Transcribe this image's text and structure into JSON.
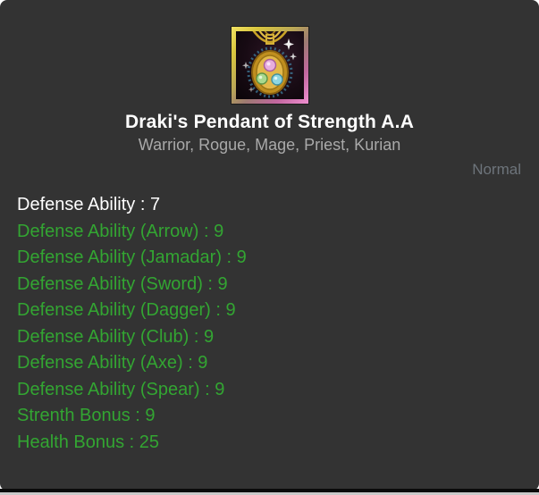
{
  "item": {
    "title": "Draki's Pendant of Strength A.A",
    "classes": "Warrior, Rogue, Mage, Priest, Kurian",
    "grade": "Normal",
    "icon": "pendant-icon",
    "stats": [
      {
        "text": "Defense Ability : 7",
        "kind": "base"
      },
      {
        "text": "Defense Ability (Arrow) : 9",
        "kind": "bonus"
      },
      {
        "text": "Defense Ability (Jamadar) : 9",
        "kind": "bonus"
      },
      {
        "text": "Defense Ability (Sword) : 9",
        "kind": "bonus"
      },
      {
        "text": "Defense Ability (Dagger) : 9",
        "kind": "bonus"
      },
      {
        "text": "Defense Ability (Club) : 9",
        "kind": "bonus"
      },
      {
        "text": "Defense Ability (Axe) : 9",
        "kind": "bonus"
      },
      {
        "text": "Defense Ability (Spear) : 9",
        "kind": "bonus"
      },
      {
        "text": "Strenth Bonus : 9",
        "kind": "bonus"
      },
      {
        "text": "Health Bonus : 25",
        "kind": "bonus"
      }
    ]
  },
  "colors": {
    "card_bg": "#333333",
    "base": "#ffffff",
    "bonus": "#33a532",
    "grade": "#6d747b",
    "subtitle": "#a9a9a9",
    "title": "#ffffff"
  }
}
